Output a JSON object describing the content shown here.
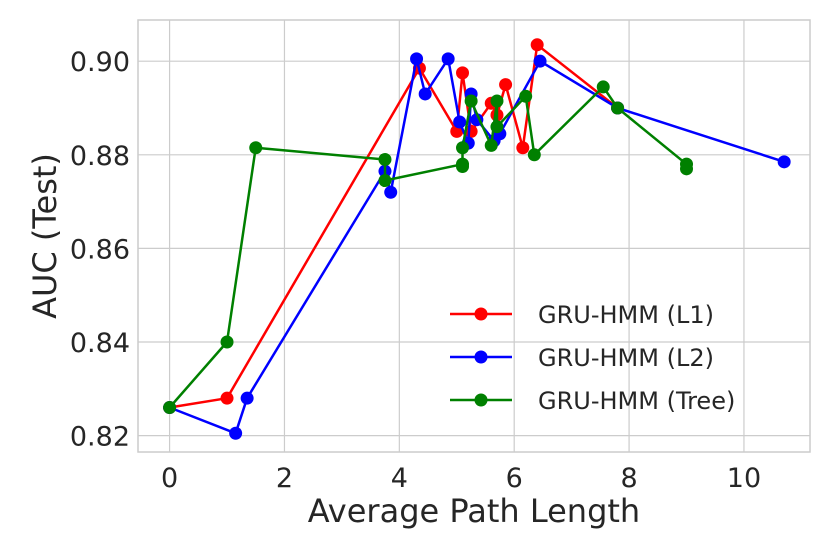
{
  "chart_data": {
    "type": "line",
    "title": "",
    "xlabel": "Average Path Length",
    "ylabel": "AUC (Test)",
    "xlim": [
      -0.55,
      11.15
    ],
    "ylim": [
      0.8165,
      0.9088
    ],
    "x_ticks": [
      0,
      2,
      4,
      6,
      8,
      10
    ],
    "y_ticks": [
      0.82,
      0.84,
      0.86,
      0.88,
      0.9
    ],
    "x_tick_labels": [
      "0",
      "2",
      "4",
      "6",
      "8",
      "10"
    ],
    "y_tick_labels": [
      "0.82",
      "0.84",
      "0.86",
      "0.88",
      "0.90"
    ],
    "grid": true,
    "legend_position": "lower-right",
    "series": [
      {
        "name": "GRU-HMM (L1)",
        "color": "#ff0000",
        "points": [
          [
            0,
            0.826
          ],
          [
            1.0,
            0.828
          ],
          [
            4.35,
            0.8985
          ],
          [
            5.0,
            0.885
          ],
          [
            5.1,
            0.8975
          ],
          [
            5.25,
            0.885
          ],
          [
            5.6,
            0.891
          ],
          [
            5.7,
            0.8885
          ],
          [
            5.85,
            0.895
          ],
          [
            6.15,
            0.8815
          ],
          [
            6.4,
            0.9035
          ],
          [
            7.8,
            0.89
          ]
        ]
      },
      {
        "name": "GRU-HMM (L2)",
        "color": "#0000ff",
        "points": [
          [
            0,
            0.826
          ],
          [
            1.15,
            0.8205
          ],
          [
            1.35,
            0.828
          ],
          [
            3.75,
            0.8765
          ],
          [
            3.85,
            0.872
          ],
          [
            4.3,
            0.9005
          ],
          [
            4.45,
            0.893
          ],
          [
            4.85,
            0.9005
          ],
          [
            5.05,
            0.887
          ],
          [
            5.2,
            0.8825
          ],
          [
            5.25,
            0.893
          ],
          [
            5.35,
            0.8875
          ],
          [
            5.65,
            0.883
          ],
          [
            5.75,
            0.8845
          ],
          [
            6.45,
            0.9
          ],
          [
            7.8,
            0.89
          ],
          [
            10.7,
            0.8785
          ]
        ]
      },
      {
        "name": "GRU-HMM (Tree)",
        "color": "#008000",
        "points": [
          [
            0,
            0.826
          ],
          [
            1.0,
            0.84
          ],
          [
            1.5,
            0.8815
          ],
          [
            3.75,
            0.879
          ],
          [
            3.75,
            0.8745
          ],
          [
            5.1,
            0.878
          ],
          [
            5.1,
            0.8775
          ],
          [
            5.1,
            0.8815
          ],
          [
            5.25,
            0.8915
          ],
          [
            5.6,
            0.882
          ],
          [
            5.7,
            0.8915
          ],
          [
            5.7,
            0.886
          ],
          [
            6.2,
            0.8925
          ],
          [
            6.35,
            0.88
          ],
          [
            7.55,
            0.8945
          ],
          [
            7.8,
            0.89
          ],
          [
            9.0,
            0.878
          ],
          [
            9.0,
            0.877
          ]
        ]
      }
    ]
  }
}
